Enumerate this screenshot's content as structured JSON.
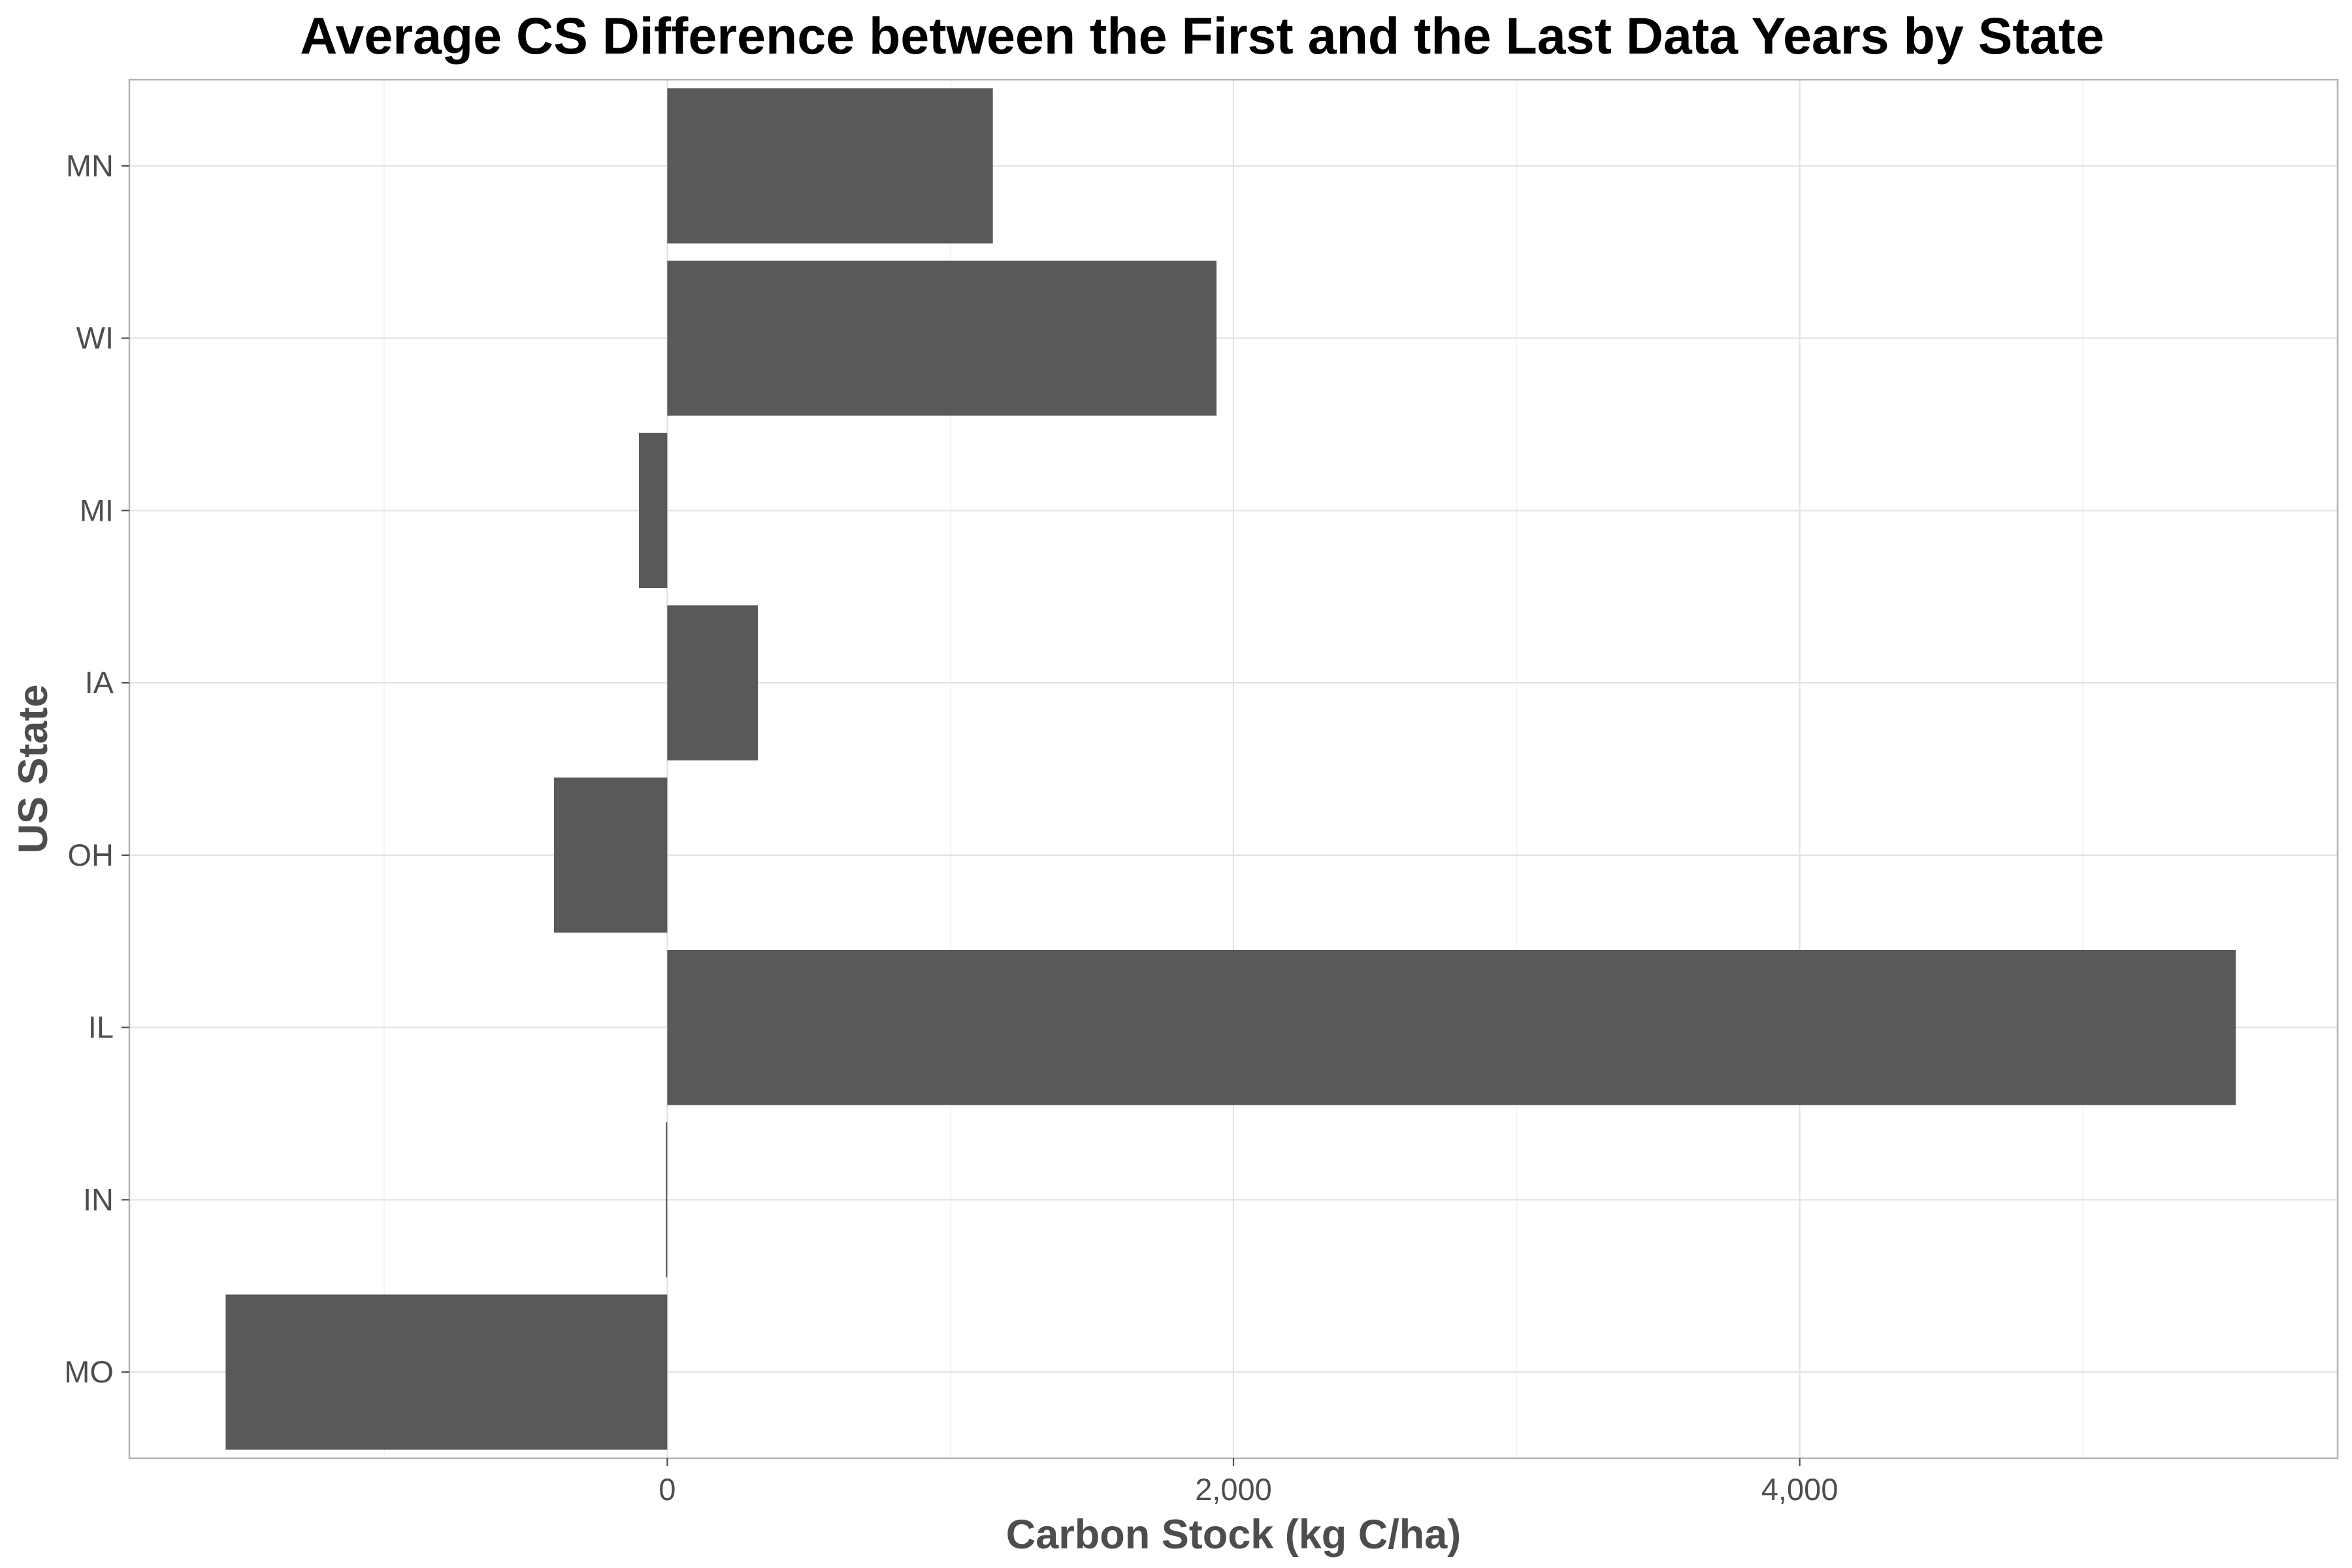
{
  "chart_data": {
    "type": "bar",
    "orientation": "horizontal",
    "title": "Average CS Difference between the First and the Last Data Years by State",
    "xlabel": "Carbon Stock (kg C/ha)",
    "ylabel": "US State",
    "categories": [
      "MN",
      "WI",
      "MI",
      "IA",
      "OH",
      "IL",
      "IN",
      "MO"
    ],
    "values": [
      1150,
      1940,
      -100,
      320,
      -400,
      5540,
      -5,
      -1560
    ],
    "x_ticks": [
      0,
      2000,
      4000
    ],
    "x_tick_labels": [
      "0",
      "2,000",
      "4,000"
    ],
    "xlim": [
      -1900,
      5900
    ],
    "bar_color": "#595959",
    "grid": true,
    "theme": "light"
  }
}
